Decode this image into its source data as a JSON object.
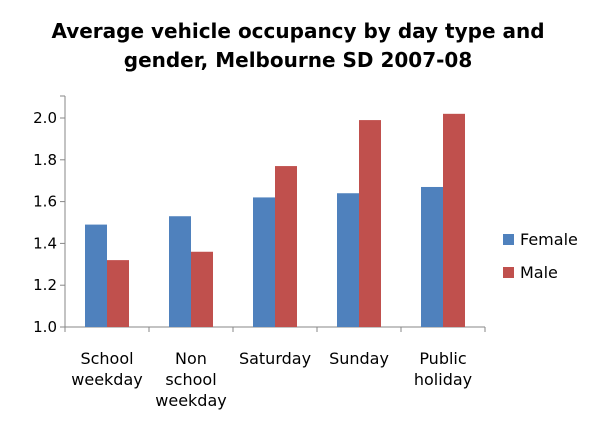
{
  "chart_data": {
    "type": "bar",
    "title_lines": [
      "Average vehicle occupancy by day type and",
      "gender, Melbourne SD 2007-08"
    ],
    "categories": [
      [
        "School",
        "weekday"
      ],
      [
        "Non",
        "school",
        "weekday"
      ],
      [
        "Saturday"
      ],
      [
        "Sunday"
      ],
      [
        "Public",
        "holiday"
      ]
    ],
    "series": [
      {
        "name": "Female",
        "color": "#4f81bd",
        "values": [
          1.49,
          1.53,
          1.62,
          1.64,
          1.67
        ]
      },
      {
        "name": "Male",
        "color": "#c0504d",
        "values": [
          1.32,
          1.36,
          1.77,
          1.99,
          2.02
        ]
      }
    ],
    "ylim": [
      1.0,
      2.0
    ],
    "yticks": [
      "1.0",
      "1.2",
      "1.4",
      "1.6",
      "1.8",
      "2.0"
    ],
    "grid": false,
    "legend_position": "right"
  }
}
